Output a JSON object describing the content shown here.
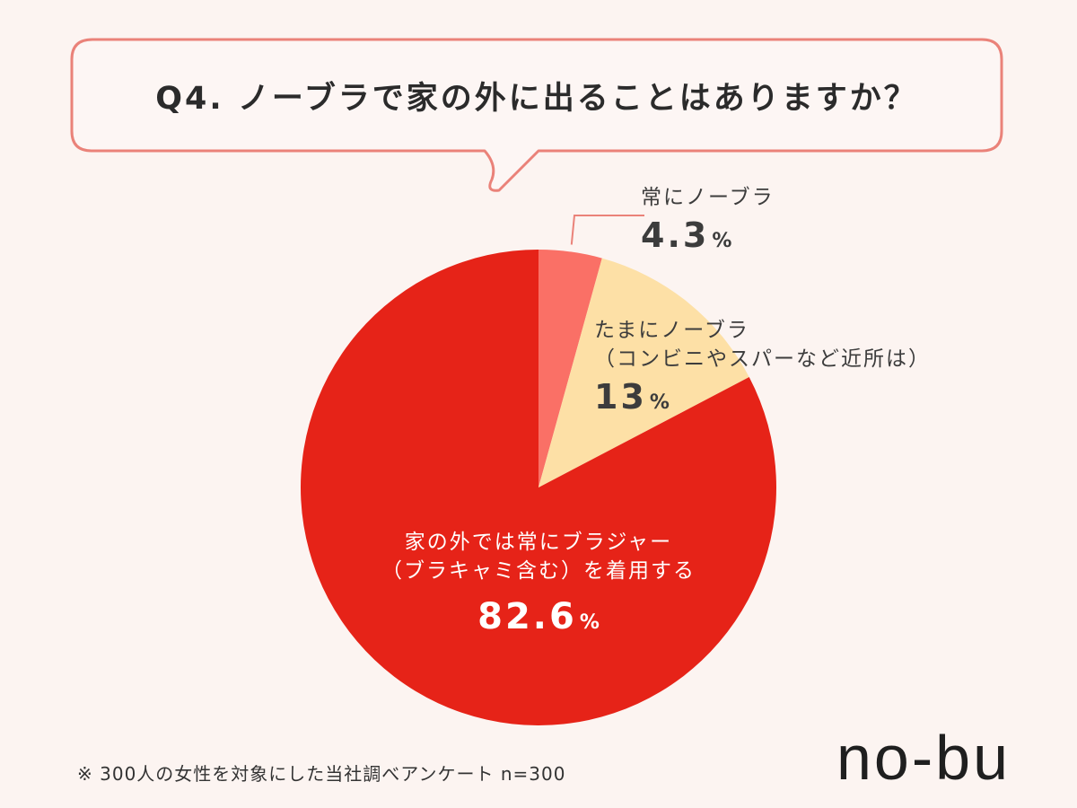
{
  "colors": {
    "background": "#fcf4f1",
    "bubble_border": "#ea8279",
    "bubble_fill": "#fdf6f4",
    "slice_always": "#fa7066",
    "slice_sometimes": "#fde0a6",
    "slice_bra": "#e62318"
  },
  "question": "Q4. ノーブラで家の外に出ることはありますか？",
  "footnote": "※ 300人の女性を対象にした当社調べアンケート n=300",
  "logo": "no-bu",
  "labels": {
    "always": {
      "line1": "常にノーブラ",
      "value": "4.3",
      "unit": "%"
    },
    "sometimes": {
      "line1": "たまにノーブラ",
      "line2": "（コンビニやスパーなど近所は）",
      "value": "13",
      "unit": "%"
    },
    "bra": {
      "line1": "家の外では常にブラジャー",
      "line2": "（ブラキャミ含む）を着用する",
      "value": "82.6",
      "unit": "%"
    }
  },
  "chart_data": {
    "type": "pie",
    "title": "Q4. ノーブラで家の外に出ることはありますか？",
    "start": "12 o'clock",
    "direction": "clockwise",
    "slices": [
      {
        "label": "常にノーブラ",
        "value": 4.3,
        "color": "#fa7066"
      },
      {
        "label": "たまにノーブラ（コンビニやスパーなど近所は）",
        "value": 13,
        "color": "#fde0a6"
      },
      {
        "label": "家の外では常にブラジャー（ブラキャミ含む）を着用する",
        "value": 82.6,
        "color": "#e62318"
      }
    ],
    "leader_line": "常にノーブラ"
  }
}
